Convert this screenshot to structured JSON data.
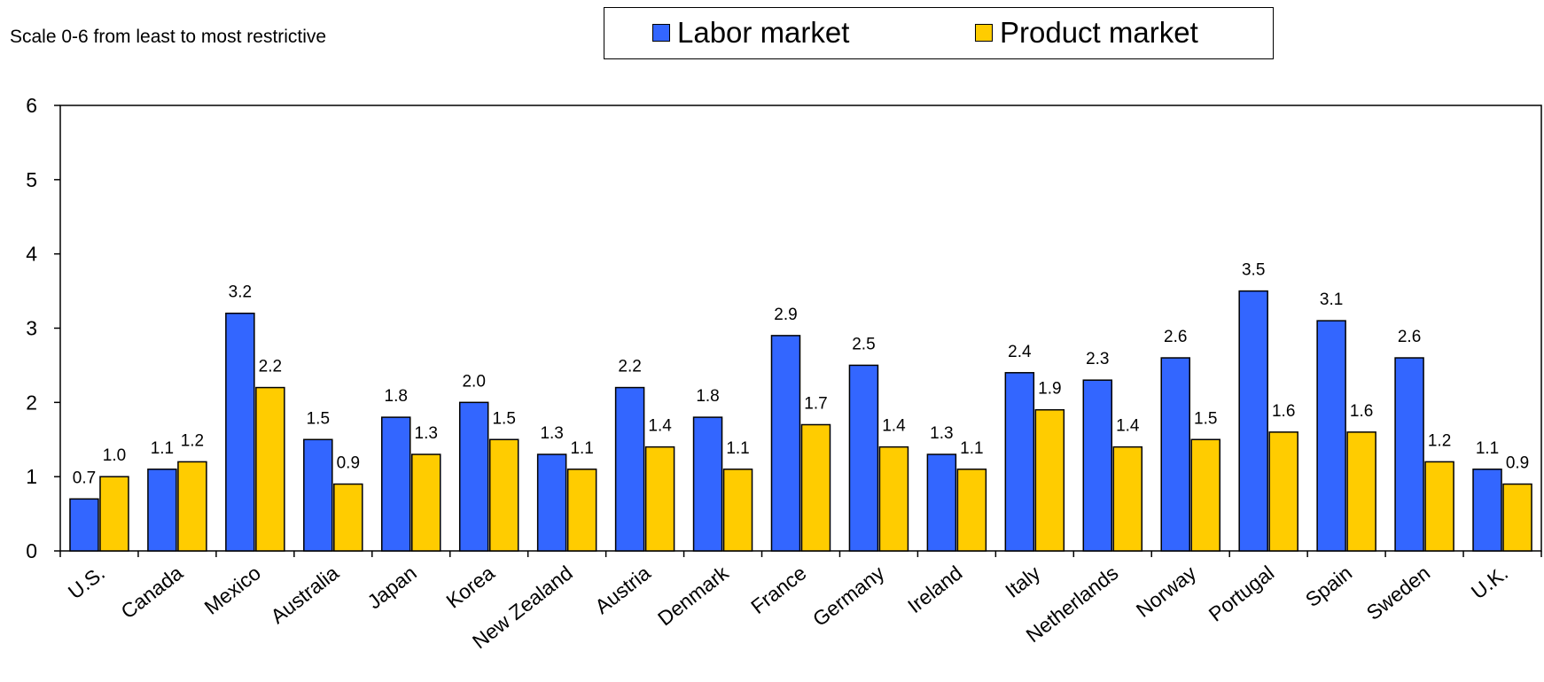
{
  "chart_data": {
    "type": "bar",
    "subtitle": "Scale 0-6 from least to most restrictive",
    "categories": [
      "U.S.",
      "Canada",
      "Mexico",
      "Australia",
      "Japan",
      "Korea",
      "New Zealand",
      "Austria",
      "Denmark",
      "France",
      "Germany",
      "Ireland",
      "Italy",
      "Netherlands",
      "Norway",
      "Portugal",
      "Spain",
      "Sweden",
      "U.K."
    ],
    "series": [
      {
        "name": "Labor market",
        "color": "#3366ff",
        "values": [
          0.7,
          1.1,
          3.2,
          1.5,
          1.8,
          2.0,
          1.3,
          2.2,
          1.8,
          2.9,
          2.5,
          1.3,
          2.4,
          2.3,
          2.6,
          3.5,
          3.1,
          2.6,
          1.1
        ],
        "labels": [
          "0.7",
          "1.1",
          "3.2",
          "1.5",
          "1.8",
          "2.0",
          "1.3",
          "2.2",
          "1.8",
          "2.9",
          "2.5",
          "1.3",
          "2.4",
          "2.3",
          "2.6",
          "3.5",
          "3.1",
          "2.6",
          "1.1"
        ]
      },
      {
        "name": "Product market",
        "color": "#ffcc00",
        "values": [
          1.0,
          1.2,
          2.2,
          0.9,
          1.3,
          1.5,
          1.1,
          1.4,
          1.1,
          1.7,
          1.4,
          1.1,
          1.9,
          1.4,
          1.5,
          1.6,
          1.6,
          1.2,
          0.9
        ],
        "labels": [
          "1.0",
          "1.2",
          "2.2",
          "0.9",
          "1.3",
          "1.5",
          "1.1",
          "1.4",
          "1.1",
          "1.7",
          "1.4",
          "1.1",
          "1.9",
          "1.4",
          "1.5",
          "1.6",
          "1.6",
          "1.2",
          "0.9"
        ]
      }
    ],
    "ylim": [
      0,
      6
    ],
    "yticks": [
      "0",
      "1",
      "2",
      "3",
      "4",
      "5",
      "6"
    ],
    "xlabel": "",
    "ylabel": "",
    "grid": false,
    "legend_position": "top-center"
  }
}
